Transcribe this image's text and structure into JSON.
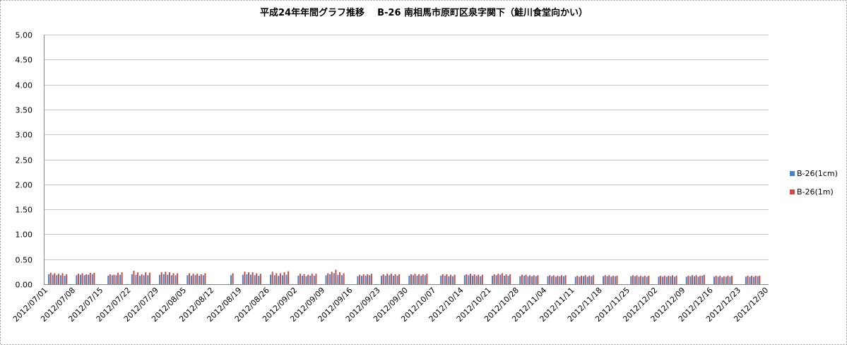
{
  "chart_data": {
    "type": "bar",
    "title": "平成24年年間グラフ推移    B-26 南相馬市原町区泉字関下（鮭川食堂向かい）",
    "xlabel": "",
    "ylabel": "",
    "ylim": [
      0,
      5
    ],
    "xlim": [
      "2012/07/01",
      "2012/12/30"
    ],
    "grid": "horizontal",
    "legend": "right",
    "yticks": [
      "0.00",
      "0.50",
      "1.00",
      "1.50",
      "2.00",
      "2.50",
      "3.00",
      "3.50",
      "4.00",
      "4.50",
      "5.00"
    ],
    "xticks": [
      "2012/07/01",
      "2012/07/08",
      "2012/07/15",
      "2012/07/22",
      "2012/07/29",
      "2012/08/05",
      "2012/08/12",
      "2012/08/19",
      "2012/08/26",
      "2012/09/02",
      "2012/09/09",
      "2012/09/16",
      "2012/09/23",
      "2012/09/30",
      "2012/10/07",
      "2012/10/14",
      "2012/10/21",
      "2012/10/28",
      "2012/11/04",
      "2012/11/11",
      "2012/11/18",
      "2012/11/25",
      "2012/12/02",
      "2012/12/09",
      "2012/12/16",
      "2012/12/23",
      "2012/12/30"
    ],
    "x": [
      "2012/07/02",
      "2012/07/03",
      "2012/07/04",
      "2012/07/05",
      "2012/07/06",
      "2012/07/09",
      "2012/07/10",
      "2012/07/11",
      "2012/07/12",
      "2012/07/13",
      "2012/07/17",
      "2012/07/18",
      "2012/07/19",
      "2012/07/20",
      "2012/07/23",
      "2012/07/24",
      "2012/07/25",
      "2012/07/26",
      "2012/07/27",
      "2012/07/30",
      "2012/07/31",
      "2012/08/01",
      "2012/08/02",
      "2012/08/03",
      "2012/08/06",
      "2012/08/07",
      "2012/08/08",
      "2012/08/09",
      "2012/08/10",
      "2012/08/17",
      "2012/08/20",
      "2012/08/21",
      "2012/08/22",
      "2012/08/23",
      "2012/08/24",
      "2012/08/27",
      "2012/08/28",
      "2012/08/29",
      "2012/08/30",
      "2012/08/31",
      "2012/09/03",
      "2012/09/04",
      "2012/09/05",
      "2012/09/06",
      "2012/09/07",
      "2012/09/10",
      "2012/09/11",
      "2012/09/12",
      "2012/09/13",
      "2012/09/14",
      "2012/09/18",
      "2012/09/19",
      "2012/09/20",
      "2012/09/21",
      "2012/09/24",
      "2012/09/25",
      "2012/09/26",
      "2012/09/27",
      "2012/09/28",
      "2012/10/01",
      "2012/10/02",
      "2012/10/03",
      "2012/10/04",
      "2012/10/05",
      "2012/10/09",
      "2012/10/10",
      "2012/10/11",
      "2012/10/12",
      "2012/10/15",
      "2012/10/16",
      "2012/10/17",
      "2012/10/18",
      "2012/10/19",
      "2012/10/22",
      "2012/10/23",
      "2012/10/24",
      "2012/10/25",
      "2012/10/26",
      "2012/10/29",
      "2012/10/30",
      "2012/10/31",
      "2012/11/01",
      "2012/11/02",
      "2012/11/05",
      "2012/11/06",
      "2012/11/07",
      "2012/11/08",
      "2012/11/09",
      "2012/11/12",
      "2012/11/13",
      "2012/11/14",
      "2012/11/15",
      "2012/11/16",
      "2012/11/19",
      "2012/11/20",
      "2012/11/21",
      "2012/11/22",
      "2012/11/26",
      "2012/11/27",
      "2012/11/28",
      "2012/11/29",
      "2012/11/30",
      "2012/12/03",
      "2012/12/04",
      "2012/12/05",
      "2012/12/06",
      "2012/12/07",
      "2012/12/10",
      "2012/12/11",
      "2012/12/12",
      "2012/12/13",
      "2012/12/14",
      "2012/12/17",
      "2012/12/18",
      "2012/12/19",
      "2012/12/20",
      "2012/12/21",
      "2012/12/25",
      "2012/12/26",
      "2012/12/27",
      "2012/12/28"
    ],
    "series": [
      {
        "name": "B-26(1cm)",
        "color": "#4F81BD",
        "values": [
          0.2,
          0.19,
          0.18,
          0.18,
          0.17,
          0.18,
          0.19,
          0.18,
          0.19,
          0.2,
          0.17,
          0.18,
          0.18,
          0.19,
          0.2,
          0.19,
          0.17,
          0.18,
          0.18,
          0.19,
          0.2,
          0.19,
          0.18,
          0.18,
          0.18,
          0.17,
          0.18,
          0.17,
          0.18,
          0.18,
          0.19,
          0.2,
          0.19,
          0.18,
          0.17,
          0.19,
          0.18,
          0.17,
          0.18,
          0.19,
          0.17,
          0.17,
          0.16,
          0.17,
          0.17,
          0.18,
          0.2,
          0.22,
          0.19,
          0.18,
          0.16,
          0.17,
          0.17,
          0.18,
          0.17,
          0.17,
          0.18,
          0.17,
          0.17,
          0.17,
          0.18,
          0.17,
          0.17,
          0.18,
          0.17,
          0.17,
          0.16,
          0.16,
          0.18,
          0.18,
          0.17,
          0.17,
          0.16,
          0.17,
          0.18,
          0.19,
          0.17,
          0.17,
          0.16,
          0.17,
          0.16,
          0.16,
          0.16,
          0.16,
          0.16,
          0.15,
          0.16,
          0.16,
          0.15,
          0.15,
          0.16,
          0.15,
          0.16,
          0.16,
          0.16,
          0.15,
          0.16,
          0.16,
          0.16,
          0.15,
          0.15,
          0.15,
          0.15,
          0.15,
          0.15,
          0.16,
          0.15,
          0.15,
          0.16,
          0.16,
          0.15,
          0.17,
          0.15,
          0.15,
          0.14,
          0.15,
          0.15,
          0.15,
          0.15,
          0.15,
          0.16
        ]
      },
      {
        "name": "B-26(1m)",
        "color": "#C0504D",
        "values": [
          0.23,
          0.22,
          0.21,
          0.22,
          0.2,
          0.21,
          0.22,
          0.2,
          0.23,
          0.23,
          0.2,
          0.19,
          0.23,
          0.24,
          0.27,
          0.24,
          0.2,
          0.24,
          0.23,
          0.24,
          0.25,
          0.24,
          0.22,
          0.22,
          0.22,
          0.21,
          0.21,
          0.2,
          0.22,
          0.22,
          0.25,
          0.24,
          0.24,
          0.22,
          0.21,
          0.25,
          0.22,
          0.22,
          0.24,
          0.26,
          0.21,
          0.2,
          0.19,
          0.21,
          0.21,
          0.22,
          0.25,
          0.29,
          0.24,
          0.22,
          0.19,
          0.2,
          0.2,
          0.21,
          0.2,
          0.21,
          0.21,
          0.2,
          0.2,
          0.2,
          0.21,
          0.2,
          0.2,
          0.21,
          0.2,
          0.2,
          0.19,
          0.19,
          0.2,
          0.21,
          0.2,
          0.19,
          0.19,
          0.2,
          0.21,
          0.22,
          0.2,
          0.2,
          0.19,
          0.19,
          0.18,
          0.18,
          0.18,
          0.18,
          0.18,
          0.17,
          0.18,
          0.18,
          0.17,
          0.17,
          0.18,
          0.17,
          0.18,
          0.18,
          0.18,
          0.17,
          0.17,
          0.18,
          0.18,
          0.17,
          0.17,
          0.17,
          0.17,
          0.17,
          0.17,
          0.18,
          0.17,
          0.17,
          0.18,
          0.18,
          0.17,
          0.19,
          0.17,
          0.17,
          0.16,
          0.17,
          0.17,
          0.17,
          0.17,
          0.17,
          0.17
        ]
      }
    ]
  }
}
